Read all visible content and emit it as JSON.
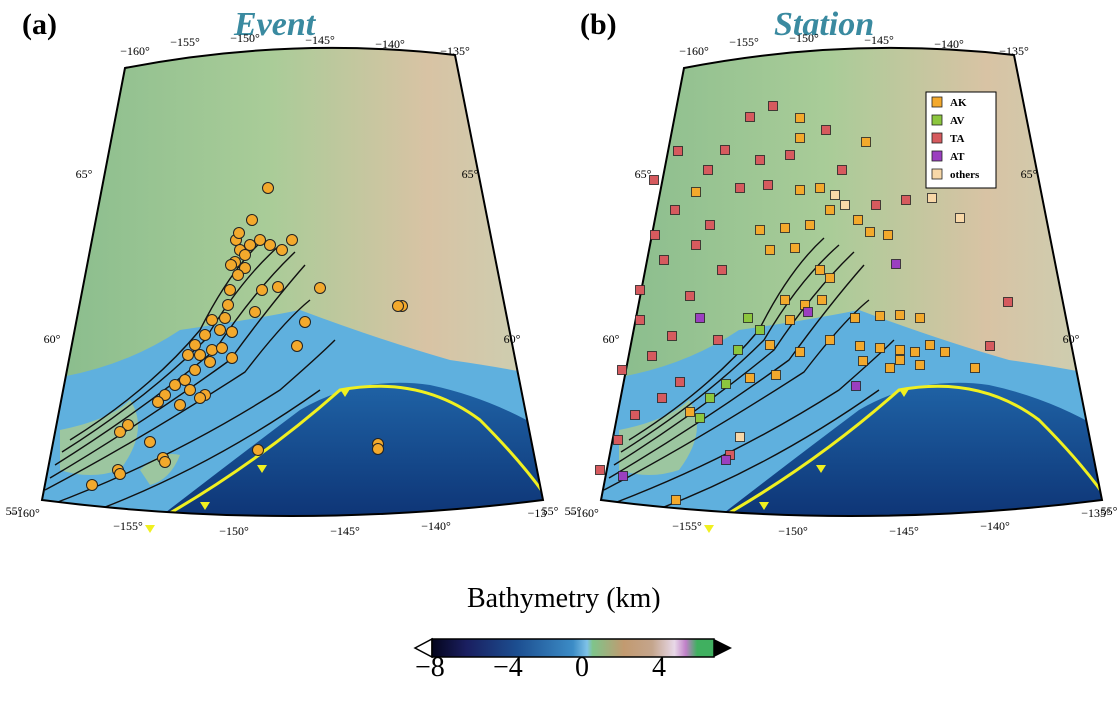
{
  "panels": [
    {
      "letter": "(a)",
      "title": "Event"
    },
    {
      "letter": "(b)",
      "title": "Station"
    }
  ],
  "map_a": {
    "top_lon_labels": [
      "−160°",
      "−155°",
      "−150°",
      "−145°",
      "−140°",
      "−135°"
    ],
    "bottom_lon_labels": [
      "−160°",
      "−155°",
      "−150°",
      "−145°",
      "−140°",
      "−13"
    ],
    "left_lat_labels": [
      "65°",
      "60°",
      "55°"
    ],
    "right_lat_labels": [
      "65°",
      "60°",
      "55°"
    ]
  },
  "map_b": {
    "top_lon_labels": [
      "−160°",
      "−155°",
      "−150°",
      "−145°",
      "−140°",
      "−135°"
    ],
    "bottom_lon_labels": [
      "−160°",
      "−155°",
      "−150°",
      "−145°",
      "−140°",
      "−135°"
    ],
    "left_lat_labels": [
      "65°",
      "60°",
      "55°"
    ],
    "right_lat_labels": [
      "65°",
      "60°",
      "55°"
    ]
  },
  "legend": [
    {
      "label": "AK",
      "color": "#f3a92c"
    },
    {
      "label": "AV",
      "color": "#8cc63e"
    },
    {
      "label": "TA",
      "color": "#d65a5e"
    },
    {
      "label": "AT",
      "color": "#9b3fc0"
    },
    {
      "label": "others",
      "color": "#f8d8a8"
    }
  ],
  "colors": {
    "event": "#f3a92c",
    "trench": "#f0f020",
    "land": "#8dbf95",
    "ocean_deep": "#0b2d6e",
    "ocean_shelf": "#5fb0de"
  },
  "colorbar": {
    "title": "Bathymetry (km)",
    "ticks": [
      "−8",
      "−4",
      "0",
      "4"
    ]
  }
}
